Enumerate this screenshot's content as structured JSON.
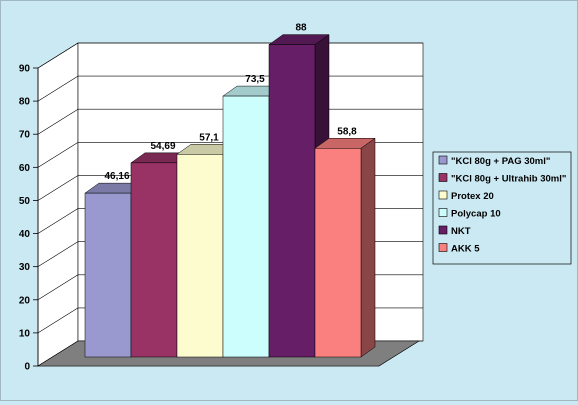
{
  "chart_data": {
    "type": "bar",
    "title": "",
    "xlabel": "",
    "ylabel": "",
    "ylim": [
      0,
      90
    ],
    "yticks": [
      0,
      10,
      20,
      30,
      40,
      50,
      60,
      70,
      80,
      90
    ],
    "grid": true,
    "legend_position": "right",
    "series": [
      {
        "name": "\"KCl 80g + PAG 30ml\"",
        "value": 46.16,
        "label": "46,16",
        "color": "#9a99cf"
      },
      {
        "name": "\"KCl 80g + Ultrahib 30ml\"",
        "value": 54.69,
        "label": "54,69",
        "color": "#993366"
      },
      {
        "name": "Protex 20",
        "value": 57.1,
        "label": "57,1",
        "color": "#fdfccf"
      },
      {
        "name": "Polycap 10",
        "value": 73.5,
        "label": "73,5",
        "color": "#cdfefe"
      },
      {
        "name": "NKT",
        "value": 88,
        "label": "88",
        "color": "#661e66"
      },
      {
        "name": "AKK 5",
        "value": 58.8,
        "label": "58,8",
        "color": "#fa8080"
      }
    ]
  },
  "colors": {
    "background": "#cbe9f3",
    "plot_wall": "#ffffff",
    "floor": "#7f7f7f",
    "gridline": "#000000"
  }
}
